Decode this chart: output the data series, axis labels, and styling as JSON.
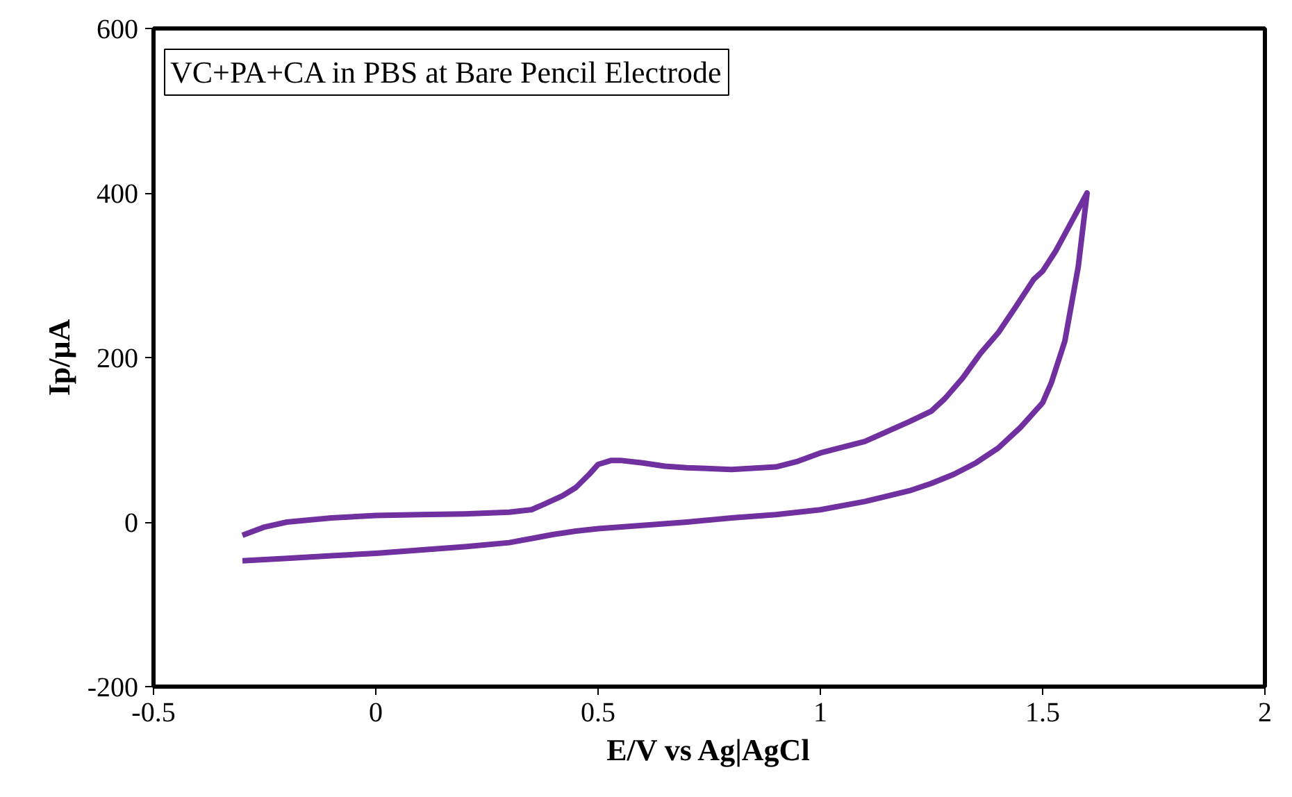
{
  "chart_data": {
    "type": "line",
    "title": "VC+PA+CA in PBS at Bare Pencil Electrode",
    "xlabel": "E/V vs Ag|AgCl",
    "ylabel": "Ip/μA",
    "xlim": [
      -0.5,
      2
    ],
    "xticks": [
      -0.5,
      0,
      0.5,
      1,
      1.5,
      2
    ],
    "ylim": [
      -200,
      600
    ],
    "yticks": [
      -200,
      0,
      200,
      400,
      600
    ],
    "grid": false,
    "marker": "none",
    "line_style": "solid",
    "series": [
      {
        "color": "#7030a0",
        "x": [
          -0.3,
          -0.25,
          -0.2,
          -0.1,
          0,
          0.1,
          0.2,
          0.3,
          0.35,
          0.38,
          0.42,
          0.45,
          0.48,
          0.5,
          0.53,
          0.55,
          0.6,
          0.65,
          0.7,
          0.8,
          0.9,
          0.95,
          1.0,
          1.1,
          1.15,
          1.2,
          1.25,
          1.28,
          1.32,
          1.36,
          1.4,
          1.44,
          1.48,
          1.5,
          1.53,
          1.56,
          1.6,
          1.58,
          1.55,
          1.52,
          1.5,
          1.45,
          1.4,
          1.35,
          1.3,
          1.25,
          1.2,
          1.1,
          1.0,
          0.9,
          0.8,
          0.7,
          0.6,
          0.5,
          0.45,
          0.4,
          0.35,
          0.3,
          0.2,
          0.1,
          0,
          -0.1,
          -0.2,
          -0.3
        ],
        "values": [
          -16,
          -6,
          0,
          5,
          8,
          9,
          10,
          12,
          15,
          22,
          32,
          42,
          58,
          70,
          75,
          75,
          72,
          68,
          66,
          64,
          67,
          74,
          84,
          98,
          110,
          122,
          135,
          150,
          175,
          205,
          230,
          262,
          295,
          305,
          330,
          360,
          400,
          310,
          220,
          170,
          145,
          115,
          90,
          72,
          58,
          47,
          38,
          25,
          15,
          9,
          5,
          0,
          -4,
          -8,
          -11,
          -15,
          -20,
          -25,
          -30,
          -34,
          -38,
          -41,
          -44,
          -47
        ]
      }
    ]
  }
}
